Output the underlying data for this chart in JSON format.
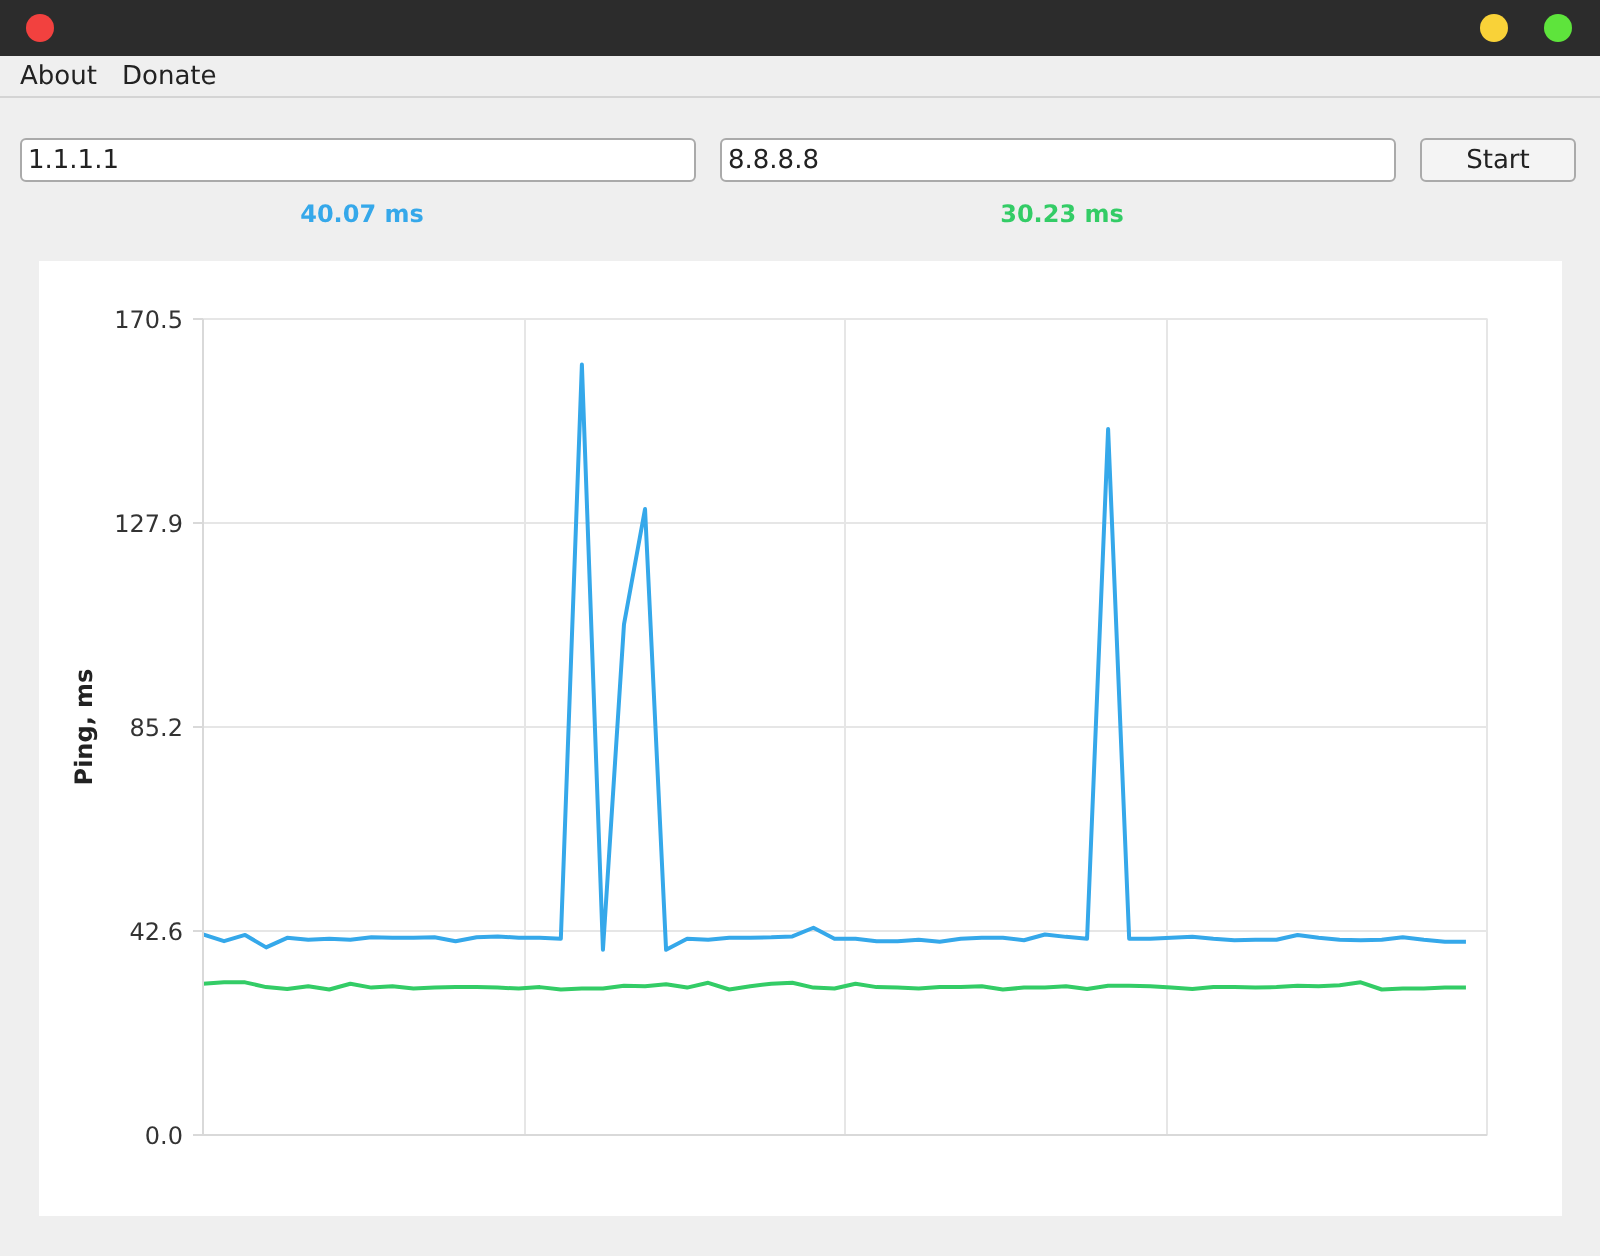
{
  "chart_data": {
    "type": "line",
    "ylabel": "Ping, ms",
    "annotations": [
      "About",
      "Donate",
      "1.1.1.1",
      "8.8.8.8",
      "Start",
      "40.07 ms",
      "30.23 ms"
    ],
    "categories": [
      null,
      null,
      null,
      null,
      null,
      null,
      null,
      null,
      null,
      null,
      null,
      null,
      null,
      null,
      null,
      null,
      null,
      null,
      null,
      null,
      null,
      null,
      null,
      null,
      null,
      null,
      null,
      null,
      null,
      null,
      null,
      null,
      null,
      null,
      null,
      null,
      null,
      null,
      null,
      null,
      null,
      null,
      null,
      null,
      null,
      null,
      null,
      null,
      null,
      null,
      null,
      null,
      null,
      null,
      null,
      null,
      null,
      null,
      null,
      null,
      null
    ],
    "ylim": [
      0,
      170.5
    ],
    "yticks": [
      {
        "value": 0,
        "label": "0.0"
      },
      42.6,
      85.2,
      127.9,
      170.5
    ],
    "grid": true,
    "series": [
      {
        "color": "#35a8ea",
        "values": [
          41.9,
          40.5,
          41.8,
          39.2,
          41.2,
          40.8,
          41.0,
          40.8,
          41.3,
          41.2,
          41.2,
          41.3,
          40.5,
          41.3,
          41.5,
          41.2,
          41.2,
          41.0,
          161.0,
          38.7,
          106.7,
          130.8,
          38.7,
          41.0,
          40.8,
          41.2,
          41.2,
          41.3,
          41.5,
          43.3,
          41.0,
          41.0,
          40.5,
          40.5,
          40.8,
          40.4,
          41.0,
          41.2,
          41.2,
          40.7,
          41.9,
          41.4,
          41.0,
          147.5,
          41.0,
          41.0,
          41.2,
          41.4,
          41.0,
          40.7,
          40.8,
          40.8,
          41.8,
          41.2,
          40.8,
          40.7,
          40.8,
          41.3,
          40.8,
          40.4,
          40.4
        ]
      },
      {
        "color": "#33cc66",
        "values": [
          31.6,
          31.9,
          31.9,
          30.9,
          30.5,
          31.1,
          30.4,
          31.6,
          30.8,
          31.1,
          30.6,
          30.8,
          30.9,
          30.9,
          30.8,
          30.6,
          30.9,
          30.4,
          30.6,
          30.6,
          31.2,
          31.1,
          31.5,
          30.8,
          31.8,
          30.4,
          31.1,
          31.6,
          31.8,
          30.8,
          30.6,
          31.6,
          30.9,
          30.8,
          30.6,
          30.9,
          30.9,
          31.1,
          30.4,
          30.8,
          30.8,
          31.1,
          30.5,
          31.2,
          31.2,
          31.1,
          30.8,
          30.5,
          30.9,
          30.9,
          30.8,
          30.9,
          31.2,
          31.1,
          31.3,
          31.9,
          30.4,
          30.6,
          30.6,
          30.8,
          30.8
        ]
      }
    ]
  }
}
